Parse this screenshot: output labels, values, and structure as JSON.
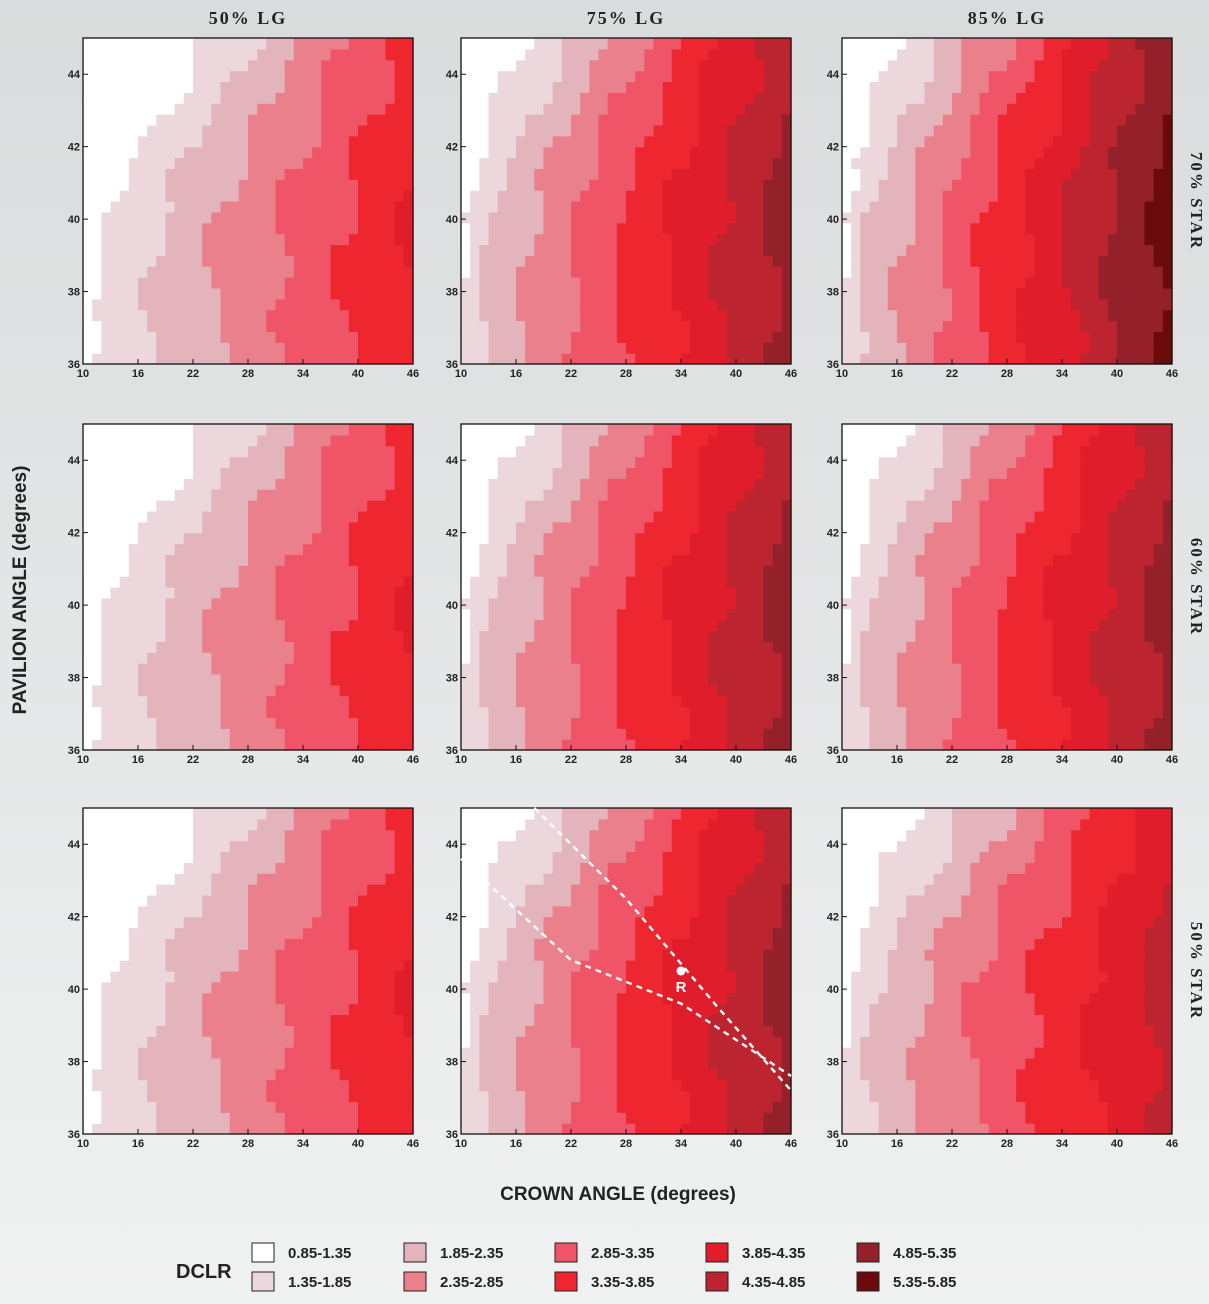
{
  "chart_data": {
    "type": "heatmap",
    "column_titles": [
      "50% LG",
      "75% LG",
      "85% LG"
    ],
    "row_titles": [
      "70% STAR",
      "60% STAR",
      "50% STAR"
    ],
    "xlabel": "CROWN ANGLE (degrees)",
    "ylabel": "PAVILION ANGLE (degrees)",
    "x_ticks": [
      "10",
      "16",
      "22",
      "28",
      "34",
      "40",
      "46"
    ],
    "y_ticks": [
      "36",
      "38",
      "40",
      "42",
      "44"
    ],
    "xlim": [
      10,
      46
    ],
    "ylim": [
      36,
      45
    ],
    "legend_title": "DCLR",
    "legend": [
      {
        "range": "0.85-1.35",
        "color": "#ffffff"
      },
      {
        "range": "1.35-1.85",
        "color": "#ecd8dc"
      },
      {
        "range": "1.85-2.35",
        "color": "#e3b4bb"
      },
      {
        "range": "2.35-2.85",
        "color": "#e9808b"
      },
      {
        "range": "2.85-3.35",
        "color": "#ef5567"
      },
      {
        "range": "3.35-3.85",
        "color": "#ee2630"
      },
      {
        "range": "3.85-4.35",
        "color": "#e01d2a"
      },
      {
        "range": "4.35-4.85",
        "color": "#bc2430"
      },
      {
        "range": "4.85-5.35",
        "color": "#94202a"
      },
      {
        "range": "5.35-5.85",
        "color": "#6a0a0a"
      }
    ],
    "panels": [
      {
        "lg": "50% LG",
        "star": "70% STAR",
        "max_level": 6,
        "shift": 0
      },
      {
        "lg": "75% LG",
        "star": "70% STAR",
        "max_level": 8,
        "shift": 1
      },
      {
        "lg": "85% LG",
        "star": "70% STAR",
        "max_level": 9,
        "shift": 1
      },
      {
        "lg": "50% LG",
        "star": "60% STAR",
        "max_level": 6,
        "shift": 0
      },
      {
        "lg": "75% LG",
        "star": "60% STAR",
        "max_level": 8,
        "shift": 1
      },
      {
        "lg": "85% LG",
        "star": "60% STAR",
        "max_level": 8,
        "shift": 1
      },
      {
        "lg": "50% LG",
        "star": "50% STAR",
        "max_level": 6,
        "shift": 0
      },
      {
        "lg": "75% LG",
        "star": "50% STAR",
        "max_level": 8,
        "shift": 1
      },
      {
        "lg": "85% LG",
        "star": "50% STAR",
        "max_level": 7,
        "shift": 1
      }
    ],
    "annotation": {
      "panel": 7,
      "label": "R",
      "point": [
        34,
        40.5
      ],
      "dashed_lines": [
        [
          [
            10,
            43.6
          ],
          [
            22,
            40.8
          ],
          [
            34,
            39.6
          ],
          [
            46,
            37.6
          ]
        ],
        [
          [
            18,
            45
          ],
          [
            28,
            42.5
          ],
          [
            38,
            39.5
          ],
          [
            46,
            37.2
          ]
        ]
      ]
    }
  }
}
